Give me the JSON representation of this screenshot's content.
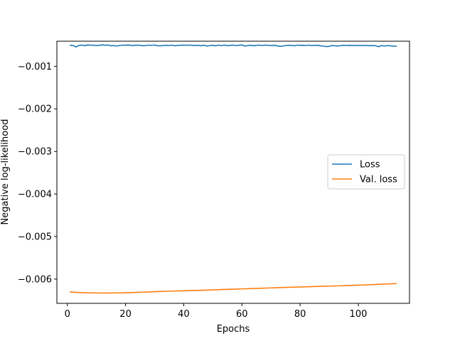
{
  "chart_data": {
    "type": "line",
    "title": "",
    "xlabel": "Epochs",
    "ylabel": "Negative log-likelihood",
    "xlim": [
      -3.6,
      117.6
    ],
    "ylim": [
      -0.00657,
      -0.00041
    ],
    "xticks": [
      0,
      20,
      40,
      60,
      80,
      100
    ],
    "xtick_labels": [
      "0",
      "20",
      "40",
      "60",
      "80",
      "100"
    ],
    "yticks": [
      -0.006,
      -0.005,
      -0.004,
      -0.003,
      -0.002,
      -0.001
    ],
    "ytick_labels": [
      "−0.006",
      "−0.005",
      "−0.004",
      "−0.003",
      "−0.002",
      "−0.001"
    ],
    "grid": false,
    "legend_position": "center-right",
    "series": [
      {
        "name": "Loss",
        "color": "#1f77b4",
        "x": [
          1,
          2,
          3,
          4,
          5,
          6,
          7,
          8,
          9,
          10,
          11,
          12,
          13,
          14,
          15,
          16,
          17,
          18,
          19,
          20,
          21,
          22,
          23,
          24,
          25,
          26,
          27,
          28,
          29,
          30,
          31,
          32,
          33,
          34,
          35,
          36,
          37,
          38,
          39,
          40,
          41,
          42,
          43,
          44,
          45,
          46,
          47,
          48,
          49,
          50,
          51,
          52,
          53,
          54,
          55,
          56,
          57,
          58,
          59,
          60,
          61,
          62,
          63,
          64,
          65,
          66,
          67,
          68,
          69,
          70,
          71,
          72,
          73,
          74,
          75,
          76,
          77,
          78,
          79,
          80,
          81,
          82,
          83,
          84,
          85,
          86,
          87,
          88,
          89,
          90,
          91,
          92,
          93,
          94,
          95,
          96,
          97,
          98,
          99,
          100,
          101,
          102,
          103,
          104,
          105,
          106,
          107,
          108,
          109,
          110,
          111,
          112,
          113
        ],
        "y": [
          -0.000505,
          -0.000512,
          -0.000545,
          -0.000508,
          -0.000502,
          -0.000515,
          -0.000497,
          -0.000505,
          -0.000502,
          -0.000512,
          -0.000507,
          -0.000497,
          -0.000505,
          -0.0005,
          -0.000518,
          -0.000512,
          -0.000523,
          -0.00051,
          -0.000502,
          -0.000505,
          -0.000497,
          -0.000512,
          -0.000507,
          -0.000502,
          -0.000505,
          -0.000518,
          -0.000512,
          -0.000502,
          -0.000508,
          -0.0005,
          -0.000515,
          -0.00052,
          -0.00051,
          -0.000505,
          -0.000512,
          -0.000502,
          -0.000518,
          -0.000507,
          -0.000505,
          -0.000502,
          -0.000505,
          -0.0005,
          -0.000507,
          -0.000512,
          -0.000505,
          -0.000518,
          -0.000502,
          -0.000525,
          -0.000512,
          -0.000505,
          -0.000518,
          -0.000502,
          -0.000512,
          -0.0005,
          -0.000515,
          -0.000507,
          -0.000502,
          -0.000512,
          -0.000505,
          -0.000497,
          -0.000525,
          -0.000512,
          -0.000505,
          -0.000518,
          -0.000507,
          -0.000502,
          -0.000512,
          -0.0005,
          -0.000507,
          -0.000512,
          -0.000505,
          -0.000518,
          -0.00053,
          -0.000525,
          -0.000512,
          -0.000505,
          -0.000508,
          -0.000518,
          -0.000502,
          -0.000507,
          -0.000505,
          -0.000512,
          -0.000502,
          -0.000512,
          -0.000508,
          -0.000505,
          -0.000518,
          -0.000525,
          -0.000537,
          -0.00053,
          -0.000512,
          -0.000518,
          -0.000525,
          -0.000512,
          -0.000505,
          -0.00051,
          -0.000507,
          -0.000512,
          -0.000508,
          -0.000512,
          -0.00051,
          -0.000512,
          -0.00051,
          -0.000515,
          -0.000512,
          -0.000518,
          -0.00054,
          -0.000512,
          -0.000525,
          -0.000512,
          -0.000518,
          -0.000525,
          -0.000527
        ]
      },
      {
        "name": "Val. loss",
        "color": "#ff7f0e",
        "x": [
          1,
          2,
          3,
          4,
          5,
          6,
          7,
          8,
          9,
          10,
          11,
          12,
          13,
          14,
          15,
          16,
          17,
          18,
          19,
          20,
          21,
          22,
          23,
          24,
          25,
          26,
          27,
          28,
          29,
          30,
          31,
          32,
          33,
          34,
          35,
          36,
          37,
          38,
          39,
          40,
          41,
          42,
          43,
          44,
          45,
          46,
          47,
          48,
          49,
          50,
          51,
          52,
          53,
          54,
          55,
          56,
          57,
          58,
          59,
          60,
          61,
          62,
          63,
          64,
          65,
          66,
          67,
          68,
          69,
          70,
          71,
          72,
          73,
          74,
          75,
          76,
          77,
          78,
          79,
          80,
          81,
          82,
          83,
          84,
          85,
          86,
          87,
          88,
          89,
          90,
          91,
          92,
          93,
          94,
          95,
          96,
          97,
          98,
          99,
          100,
          101,
          102,
          103,
          104,
          105,
          106,
          107,
          108,
          109,
          110,
          111,
          112,
          113
        ],
        "y": [
          -0.006304,
          -0.006308,
          -0.006312,
          -0.006315,
          -0.006318,
          -0.00632,
          -0.006322,
          -0.006324,
          -0.006325,
          -0.006326,
          -0.006326,
          -0.006327,
          -0.006327,
          -0.006327,
          -0.006327,
          -0.006326,
          -0.006325,
          -0.006324,
          -0.006323,
          -0.006321,
          -0.006319,
          -0.006317,
          -0.006315,
          -0.006312,
          -0.006309,
          -0.006307,
          -0.006304,
          -0.006301,
          -0.006299,
          -0.006296,
          -0.006294,
          -0.006291,
          -0.006289,
          -0.006286,
          -0.006284,
          -0.006282,
          -0.00628,
          -0.006278,
          -0.006276,
          -0.006274,
          -0.006272,
          -0.00627,
          -0.006268,
          -0.006266,
          -0.006264,
          -0.006262,
          -0.00626,
          -0.006258,
          -0.006256,
          -0.006253,
          -0.006251,
          -0.006249,
          -0.006246,
          -0.006244,
          -0.006242,
          -0.006239,
          -0.006237,
          -0.006235,
          -0.006232,
          -0.00623,
          -0.006228,
          -0.006226,
          -0.006223,
          -0.006221,
          -0.006219,
          -0.006216,
          -0.006214,
          -0.006212,
          -0.006209,
          -0.006207,
          -0.006205,
          -0.006202,
          -0.0062,
          -0.006198,
          -0.006196,
          -0.006193,
          -0.006191,
          -0.006189,
          -0.006187,
          -0.006185,
          -0.006183,
          -0.006181,
          -0.006179,
          -0.006177,
          -0.006175,
          -0.006173,
          -0.006171,
          -0.006169,
          -0.006167,
          -0.006165,
          -0.006163,
          -0.006161,
          -0.006159,
          -0.006157,
          -0.006154,
          -0.006152,
          -0.00615,
          -0.006148,
          -0.006145,
          -0.006143,
          -0.00614,
          -0.006138,
          -0.006135,
          -0.006132,
          -0.006129,
          -0.006126,
          -0.006123,
          -0.00612,
          -0.006117,
          -0.006114,
          -0.006111,
          -0.006108,
          -0.006105
        ]
      }
    ]
  }
}
